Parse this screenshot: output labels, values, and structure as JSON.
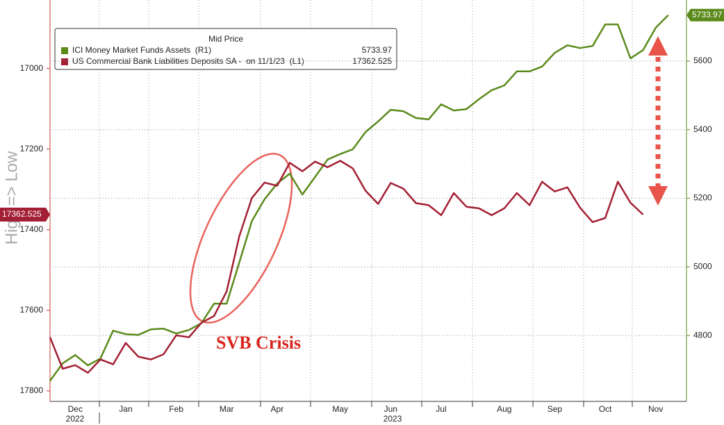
{
  "chart_data": {
    "type": "line",
    "y_label": "High => Low",
    "legend_title": "Mid Price",
    "annotation": "SVB Crisis",
    "categories": [
      null,
      null,
      "Dec",
      null,
      null,
      null,
      "Jan",
      null,
      null,
      null,
      "Feb",
      null,
      null,
      null,
      "Mar",
      null,
      null,
      null,
      "Apr",
      null,
      null,
      null,
      null,
      "May",
      null,
      null,
      null,
      "Jun",
      null,
      null,
      null,
      "Jul",
      null,
      null,
      null,
      null,
      "Aug",
      null,
      null,
      null,
      "Sep",
      null,
      null,
      null,
      "Oct",
      null,
      null,
      null,
      "Nov",
      null
    ],
    "years": [
      "2022",
      "2023"
    ],
    "series": [
      {
        "name": "ICI Money Market Funds Assets  (R1)",
        "color": "#5a8a1a",
        "axis": "y2",
        "values": [
          4668,
          4719,
          4743,
          4713,
          4733,
          4814,
          4804,
          4802,
          4818,
          4820,
          4806,
          4816,
          4836,
          4893,
          4893,
          5013,
          5134,
          5197,
          5243,
          5272,
          5211,
          5262,
          5313,
          5329,
          5343,
          5393,
          5424,
          5458,
          5454,
          5434,
          5430,
          5474,
          5456,
          5460,
          5489,
          5515,
          5529,
          5570,
          5570,
          5584,
          5624,
          5646,
          5638,
          5644,
          5707,
          5707,
          5608,
          5632,
          5697,
          5733.97
        ]
      },
      {
        "name": "US Commercial Bank Liabilities Deposits SA -  on 11/1/23  (L1)",
        "color": "#a31f34",
        "axis": "y",
        "values": [
          17667,
          17745,
          17736,
          17755,
          17722,
          17734,
          17681,
          17715,
          17722,
          17709,
          17662,
          17667,
          17631,
          17614,
          17553,
          17416,
          17321,
          17283,
          17291,
          17234,
          17255,
          17231,
          17245,
          17229,
          17248,
          17303,
          17336,
          17284,
          17298,
          17334,
          17339,
          17364,
          17309,
          17343,
          17347,
          17364,
          17347,
          17309,
          17339,
          17281,
          17305,
          17295,
          17345,
          17381,
          17371,
          17281,
          17333,
          17362.525,
          null,
          null
        ]
      }
    ],
    "ylim": [
      16830,
      17826
    ],
    "y_inverted": true,
    "yticks": [
      17000,
      17200,
      17400,
      17600,
      17800
    ],
    "y2lim": [
      4608,
      5778
    ],
    "y2ticks": [
      4800,
      5000,
      5200,
      5400,
      5600
    ],
    "grid": true
  }
}
